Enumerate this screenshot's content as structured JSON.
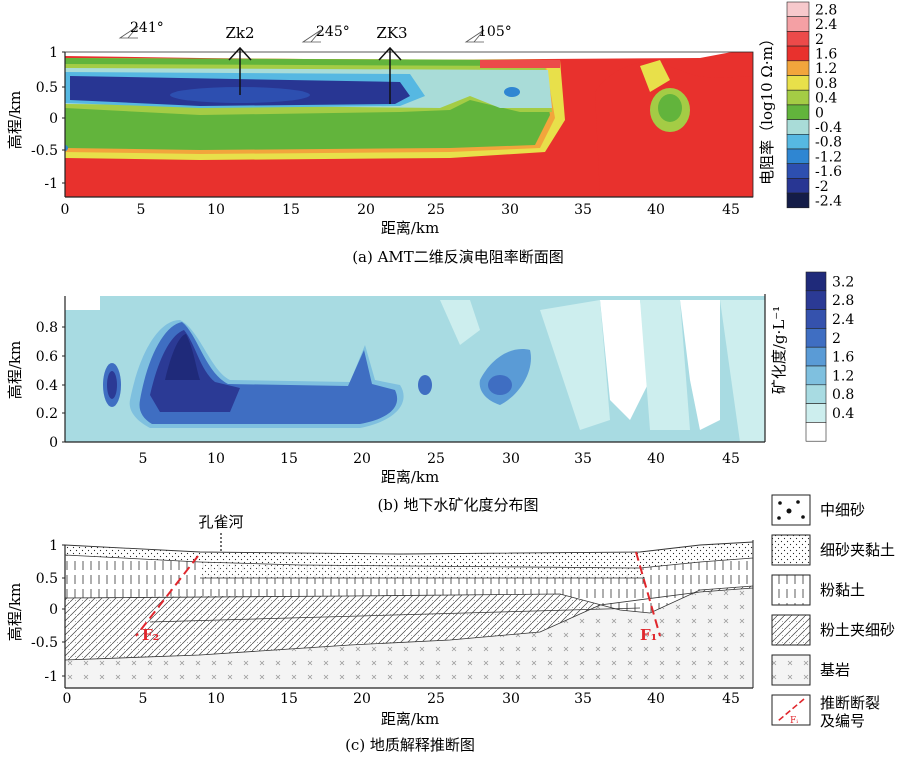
{
  "panel_a": {
    "caption": "(a) AMT二维反演电阻率断面图",
    "ylabel": "高程/km",
    "xlabel": "距离/km",
    "yticks": [
      "1",
      "0.5",
      "0",
      "-0.5",
      "-1"
    ],
    "xticks": [
      "0",
      "5",
      "10",
      "15",
      "20",
      "25",
      "30",
      "35",
      "40",
      "45"
    ],
    "strikes": [
      "241°",
      "245°",
      "105°"
    ],
    "boreholes": [
      "Zk2",
      "ZK3"
    ],
    "colorbar_title": "电阻率（log10 Ω·m）",
    "colorbar_ticks": [
      "2.8",
      "2.4",
      "2",
      "1.6",
      "1.2",
      "0.8",
      "0.4",
      "0",
      "-0.4",
      "-0.8",
      "-1.2",
      "-1.6",
      "-2",
      "-2.4"
    ],
    "colorbar_colors": [
      "#f7c9cc",
      "#f4a0a4",
      "#ec4a4a",
      "#e8312d",
      "#f2a53c",
      "#e8e04a",
      "#a4cc45",
      "#62b43c",
      "#a9dcd8",
      "#56b8e2",
      "#2f86d2",
      "#2d4fb0",
      "#283693",
      "#141c48"
    ]
  },
  "panel_b": {
    "caption": "(b) 地下水矿化度分布图",
    "ylabel": "高程/km",
    "xlabel": "距离/km",
    "yticks": [
      "0.8",
      "0.6",
      "0.4",
      "0.2",
      "0"
    ],
    "xticks": [
      "5",
      "10",
      "15",
      "20",
      "25",
      "30",
      "35",
      "40",
      "45"
    ],
    "colorbar_title": "矿化度/g·L⁻¹",
    "colorbar_ticks": [
      "3.2",
      "2.8",
      "2.4",
      "2",
      "1.6",
      "1.2",
      "0.8",
      "0.4"
    ],
    "colorbar_colors": [
      "#1f2a7a",
      "#2b3a95",
      "#3552ad",
      "#3f6ec2",
      "#5a9bd6",
      "#7fc0df",
      "#a8dbe2",
      "#cdeeee",
      "#ffffff"
    ]
  },
  "panel_c": {
    "caption": "(c) 地质解释推断图",
    "ylabel": "高程/km",
    "xlabel": "距离/km",
    "yticks": [
      "1",
      "0.5",
      "0",
      "-0.5",
      "-1"
    ],
    "xticks": [
      "0",
      "5",
      "10",
      "15",
      "20",
      "25",
      "30",
      "35",
      "40",
      "45"
    ],
    "river_label": "孔雀河",
    "faults": [
      "F₂",
      "F₁"
    ],
    "legend": [
      {
        "label": "中细砂",
        "pattern": "sand-dots"
      },
      {
        "label": "细砂夹黏土",
        "pattern": "fine-dots"
      },
      {
        "label": "粉黏土",
        "pattern": "vertical-lines"
      },
      {
        "label": "粉土夹细砂",
        "pattern": "diagonal-lines"
      },
      {
        "label": "基岩",
        "pattern": "crosses"
      },
      {
        "label": "推断断裂\n及编号",
        "pattern": "fault-line"
      }
    ],
    "legend_fault_sample": "Fᵢ",
    "fault_color": "#e0262c"
  }
}
